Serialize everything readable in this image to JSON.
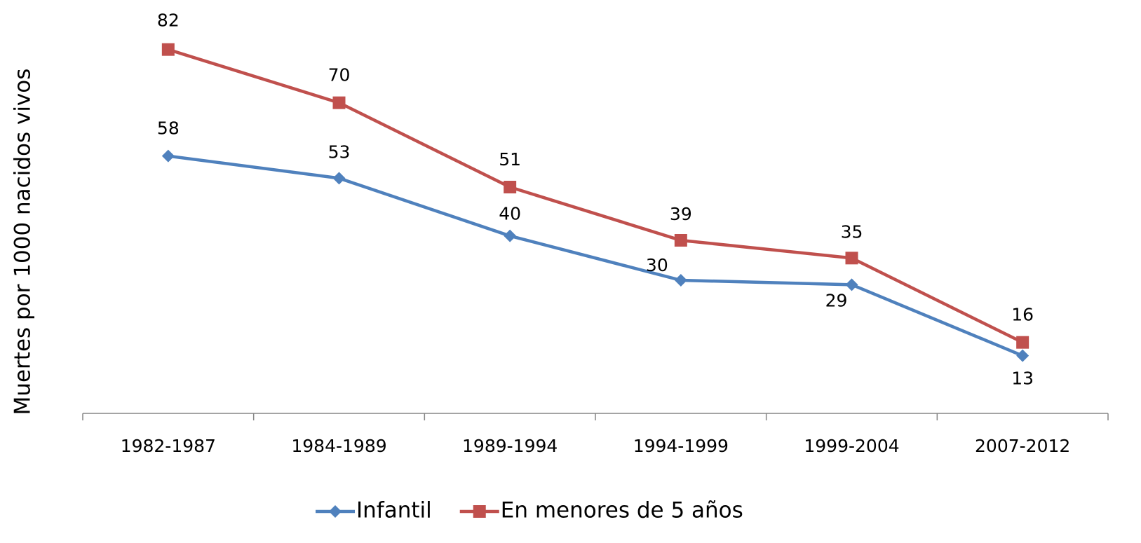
{
  "chart_data": {
    "type": "line",
    "y_label": "Muertes por 1000  nacidos vivos",
    "categories": [
      "1982-1987",
      "1984-1989",
      "1989-1994",
      "1994-1999",
      "1999-2004",
      "2007-2012"
    ],
    "series": [
      {
        "name": "Infantil",
        "color": "#4f81bd",
        "marker": "diamond",
        "values": [
          58,
          53,
          40,
          30,
          29,
          13
        ]
      },
      {
        "name": "En menores de 5 años",
        "color": "#c0504d",
        "marker": "square",
        "values": [
          82,
          70,
          51,
          39,
          35,
          16
        ]
      }
    ],
    "ylim": [
      0,
      90
    ],
    "grid": false,
    "legend": "bottom"
  }
}
